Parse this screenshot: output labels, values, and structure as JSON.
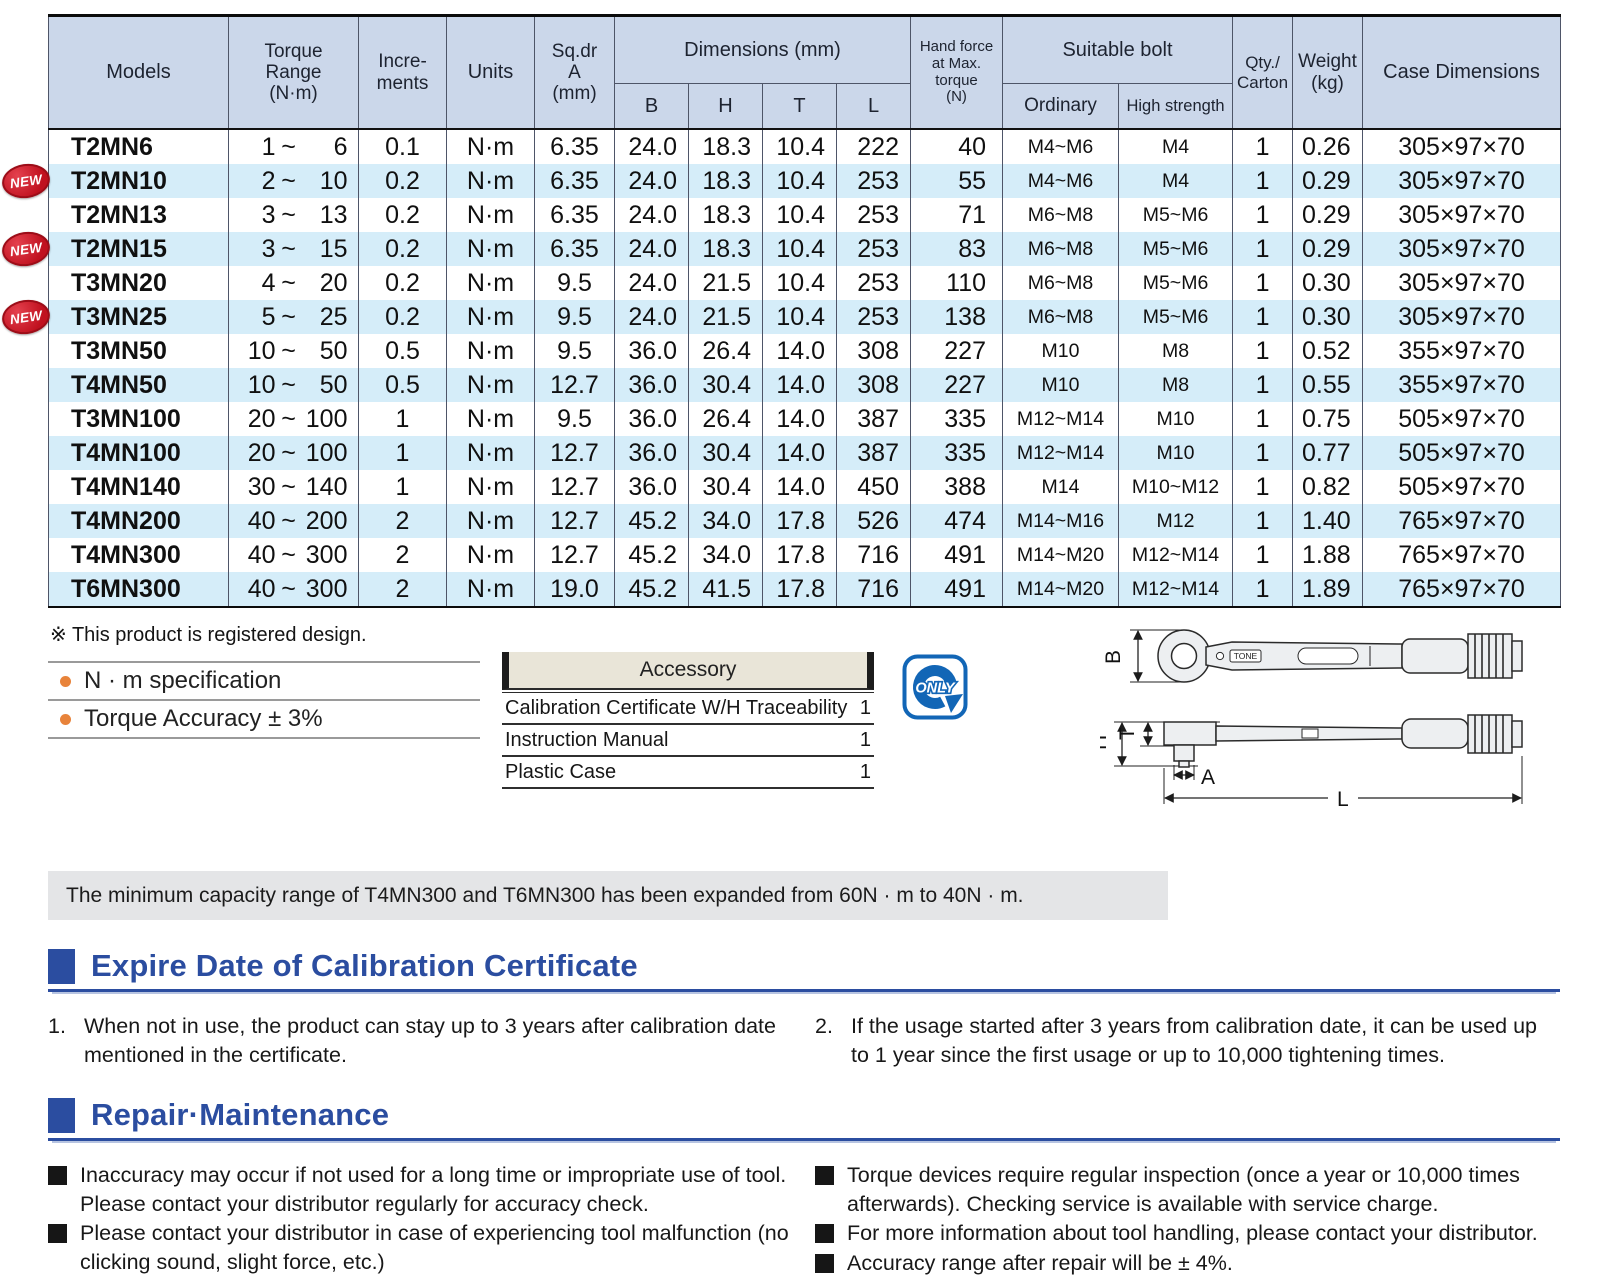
{
  "colors": {
    "accent_blue": "#2b4da0",
    "table_header_bg": "#cbd7ea",
    "row_alt_bg": "#d5edf9",
    "new_red": "#c0111f",
    "bullet_orange": "#e8833a",
    "only_blue": "#1266b6",
    "note_gray": "#e4e5e7",
    "accessory_beige": "#e9e5d8"
  },
  "table": {
    "new_badge": "NEW",
    "tilde": "~",
    "headers": {
      "models": "Models",
      "torque_range": "Torque\nRange\n(N·m)",
      "increments": "Incre-\nments",
      "units": "Units",
      "sqdr": "Sq.dr\nA\n(mm)",
      "dimensions": "Dimensions (mm)",
      "b": "B",
      "h": "H",
      "t": "T",
      "l": "L",
      "hand_force": "Hand force\nat Max.\ntorque\n(N)",
      "suitable_bolt": "Suitable bolt",
      "ordinary": "Ordinary",
      "high_strength": "High strength",
      "qty_carton": "Qty./\nCarton",
      "weight": "Weight\n(kg)",
      "case_dimensions": "Case Dimensions"
    },
    "rows": [
      {
        "model": "T2MN6",
        "new": false,
        "min": "1",
        "max": "6",
        "incr": "0.1",
        "units": "N·m",
        "sqdr": "6.35",
        "b": "24.0",
        "h": "18.3",
        "t": "10.4",
        "l": "222",
        "force": "40",
        "ordinary": "M4~M6",
        "high": "M4",
        "qty": "1",
        "weight": "0.26",
        "case": "305×97×70"
      },
      {
        "model": "T2MN10",
        "new": true,
        "min": "2",
        "max": "10",
        "incr": "0.2",
        "units": "N·m",
        "sqdr": "6.35",
        "b": "24.0",
        "h": "18.3",
        "t": "10.4",
        "l": "253",
        "force": "55",
        "ordinary": "M4~M6",
        "high": "M4",
        "qty": "1",
        "weight": "0.29",
        "case": "305×97×70"
      },
      {
        "model": "T2MN13",
        "new": false,
        "min": "3",
        "max": "13",
        "incr": "0.2",
        "units": "N·m",
        "sqdr": "6.35",
        "b": "24.0",
        "h": "18.3",
        "t": "10.4",
        "l": "253",
        "force": "71",
        "ordinary": "M6~M8",
        "high": "M5~M6",
        "qty": "1",
        "weight": "0.29",
        "case": "305×97×70"
      },
      {
        "model": "T2MN15",
        "new": true,
        "min": "3",
        "max": "15",
        "incr": "0.2",
        "units": "N·m",
        "sqdr": "6.35",
        "b": "24.0",
        "h": "18.3",
        "t": "10.4",
        "l": "253",
        "force": "83",
        "ordinary": "M6~M8",
        "high": "M5~M6",
        "qty": "1",
        "weight": "0.29",
        "case": "305×97×70"
      },
      {
        "model": "T3MN20",
        "new": false,
        "min": "4",
        "max": "20",
        "incr": "0.2",
        "units": "N·m",
        "sqdr": "9.5",
        "b": "24.0",
        "h": "21.5",
        "t": "10.4",
        "l": "253",
        "force": "110",
        "ordinary": "M6~M8",
        "high": "M5~M6",
        "qty": "1",
        "weight": "0.30",
        "case": "305×97×70"
      },
      {
        "model": "T3MN25",
        "new": true,
        "min": "5",
        "max": "25",
        "incr": "0.2",
        "units": "N·m",
        "sqdr": "9.5",
        "b": "24.0",
        "h": "21.5",
        "t": "10.4",
        "l": "253",
        "force": "138",
        "ordinary": "M6~M8",
        "high": "M5~M6",
        "qty": "1",
        "weight": "0.30",
        "case": "305×97×70"
      },
      {
        "model": "T3MN50",
        "new": false,
        "min": "10",
        "max": "50",
        "incr": "0.5",
        "units": "N·m",
        "sqdr": "9.5",
        "b": "36.0",
        "h": "26.4",
        "t": "14.0",
        "l": "308",
        "force": "227",
        "ordinary": "M10",
        "high": "M8",
        "qty": "1",
        "weight": "0.52",
        "case": "355×97×70"
      },
      {
        "model": "T4MN50",
        "new": false,
        "min": "10",
        "max": "50",
        "incr": "0.5",
        "units": "N·m",
        "sqdr": "12.7",
        "b": "36.0",
        "h": "30.4",
        "t": "14.0",
        "l": "308",
        "force": "227",
        "ordinary": "M10",
        "high": "M8",
        "qty": "1",
        "weight": "0.55",
        "case": "355×97×70"
      },
      {
        "model": "T3MN100",
        "new": false,
        "min": "20",
        "max": "100",
        "incr": "1",
        "units": "N·m",
        "sqdr": "9.5",
        "b": "36.0",
        "h": "26.4",
        "t": "14.0",
        "l": "387",
        "force": "335",
        "ordinary": "M12~M14",
        "high": "M10",
        "qty": "1",
        "weight": "0.75",
        "case": "505×97×70"
      },
      {
        "model": "T4MN100",
        "new": false,
        "min": "20",
        "max": "100",
        "incr": "1",
        "units": "N·m",
        "sqdr": "12.7",
        "b": "36.0",
        "h": "30.4",
        "t": "14.0",
        "l": "387",
        "force": "335",
        "ordinary": "M12~M14",
        "high": "M10",
        "qty": "1",
        "weight": "0.77",
        "case": "505×97×70"
      },
      {
        "model": "T4MN140",
        "new": false,
        "min": "30",
        "max": "140",
        "incr": "1",
        "units": "N·m",
        "sqdr": "12.7",
        "b": "36.0",
        "h": "30.4",
        "t": "14.0",
        "l": "450",
        "force": "388",
        "ordinary": "M14",
        "high": "M10~M12",
        "qty": "1",
        "weight": "0.82",
        "case": "505×97×70"
      },
      {
        "model": "T4MN200",
        "new": false,
        "min": "40",
        "max": "200",
        "incr": "2",
        "units": "N·m",
        "sqdr": "12.7",
        "b": "45.2",
        "h": "34.0",
        "t": "17.8",
        "l": "526",
        "force": "474",
        "ordinary": "M14~M16",
        "high": "M12",
        "qty": "1",
        "weight": "1.40",
        "case": "765×97×70"
      },
      {
        "model": "T4MN300",
        "new": false,
        "min": "40",
        "max": "300",
        "incr": "2",
        "units": "N·m",
        "sqdr": "12.7",
        "b": "45.2",
        "h": "34.0",
        "t": "17.8",
        "l": "716",
        "force": "491",
        "ordinary": "M14~M20",
        "high": "M12~M14",
        "qty": "1",
        "weight": "1.88",
        "case": "765×97×70"
      },
      {
        "model": "T6MN300",
        "new": false,
        "min": "40",
        "max": "300",
        "incr": "2",
        "units": "N·m",
        "sqdr": "19.0",
        "b": "45.2",
        "h": "41.5",
        "t": "17.8",
        "l": "716",
        "force": "491",
        "ordinary": "M14~M20",
        "high": "M12~M14",
        "qty": "1",
        "weight": "1.89",
        "case": "765×97×70"
      }
    ]
  },
  "footnote": "※ This product is registered design.",
  "spec_bullets": [
    "N · m specification",
    "Torque Accuracy ± 3%"
  ],
  "accessory": {
    "title": "Accessory",
    "items": [
      {
        "label": "Calibration Certificate W/H Traceability",
        "qty": "1"
      },
      {
        "label": "Instruction Manual",
        "qty": "1"
      },
      {
        "label": "Plastic Case",
        "qty": "1"
      }
    ]
  },
  "only_badge_label": "ONLY",
  "diagram_labels": {
    "b": "B",
    "h": "H",
    "t": "T",
    "a": "A",
    "l": "L",
    "brand": "TONE"
  },
  "note_bar": "The minimum capacity range of T4MN300 and T6MN300 has been expanded from 60N · m to 40N · m.",
  "sections": {
    "expire": {
      "title": "Expire Date of Calibration Certificate",
      "items": [
        {
          "num": "1.",
          "text": "When not in use, the product can stay up to 3 years after calibration date mentioned in the certificate."
        },
        {
          "num": "2.",
          "text": "If the usage started after 3 years from calibration date, it can be used up to 1 year since the first usage or up to 10,000 tightening times."
        }
      ]
    },
    "repair": {
      "title": "Repair·Maintenance",
      "left_items": [
        "Inaccuracy may occur if not used for a long time or impropriate use of tool. Please contact your distributor regularly for accuracy check.",
        "Please contact your distributor in case of experiencing tool malfunction (no clicking sound, slight force, etc.)"
      ],
      "right_items": [
        "Torque devices require regular inspection (once a year or 10,000 times afterwards). Checking service is available with service charge.",
        "For more information about tool handling, please contact your distributor.",
        "Accuracy range after repair will be ± 4%."
      ]
    }
  }
}
